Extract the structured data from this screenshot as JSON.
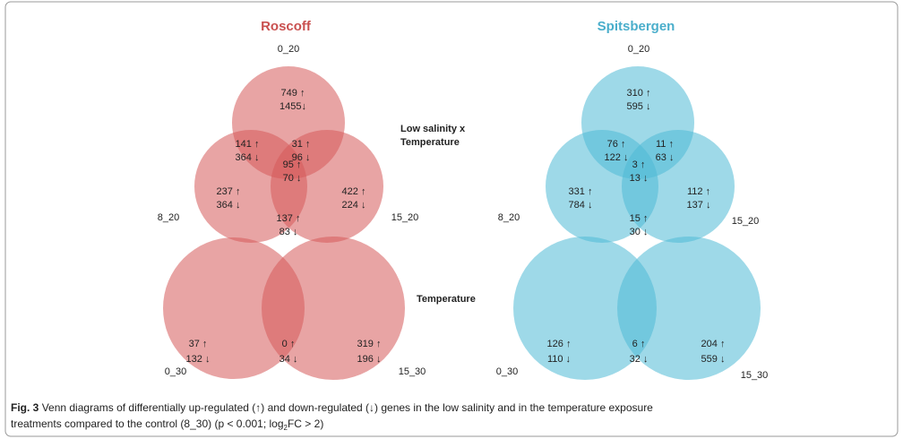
{
  "panels": [
    {
      "title": "Roscoff",
      "venn3": {
        "set_labels": [
          "0_20",
          "8_20",
          "15_20"
        ],
        "regions": [
          [
            "749 ↑",
            "1455↓"
          ],
          [
            "141 ↑",
            "364 ↓"
          ],
          [
            "31 ↑",
            "96 ↓"
          ],
          [
            "95 ↑",
            "70 ↓"
          ],
          [
            "237 ↑",
            "364 ↓"
          ],
          [
            "422 ↑",
            "224 ↓"
          ],
          [
            "137 ↑",
            "83 ↓"
          ]
        ]
      },
      "venn2": {
        "set_labels": [
          "0_30",
          "15_30"
        ],
        "regions": [
          [
            "37 ↑",
            "132 ↓"
          ],
          [
            "0 ↑",
            "34 ↓"
          ],
          [
            "319 ↑",
            "196 ↓"
          ]
        ]
      }
    },
    {
      "title": "Spitsbergen",
      "venn3": {
        "set_labels": [
          "0_20",
          "8_20",
          "15_20"
        ],
        "regions": [
          [
            "310 ↑",
            "595 ↓"
          ],
          [
            "76 ↑",
            "122 ↓"
          ],
          [
            "11 ↑",
            "63 ↓"
          ],
          [
            "3 ↑",
            "13 ↓"
          ],
          [
            "331 ↑",
            "784 ↓"
          ],
          [
            "112 ↑",
            "137 ↓"
          ],
          [
            "15 ↑",
            "30 ↓"
          ]
        ]
      },
      "venn2": {
        "set_labels": [
          "0_30",
          "15_30"
        ],
        "regions": [
          [
            "126 ↑",
            "110 ↓"
          ],
          [
            "6 ↑",
            "32 ↓"
          ],
          [
            "204 ↑",
            "559 ↓"
          ]
        ]
      }
    }
  ],
  "row_labels": {
    "low_salinity": [
      "Low salinity x",
      "Temperature"
    ],
    "temperature": "Temperature"
  },
  "caption": {
    "label": "Fig. 3",
    "line1": "Venn diagrams of differentially up-regulated (↑) and down-regulated (↓) genes in the low salinity and in the temperature exposure",
    "line2": "treatments compared to the control (8_30) (p < 0.001; log",
    "subscript": "2",
    "line2_end": "FC > 2)"
  }
}
